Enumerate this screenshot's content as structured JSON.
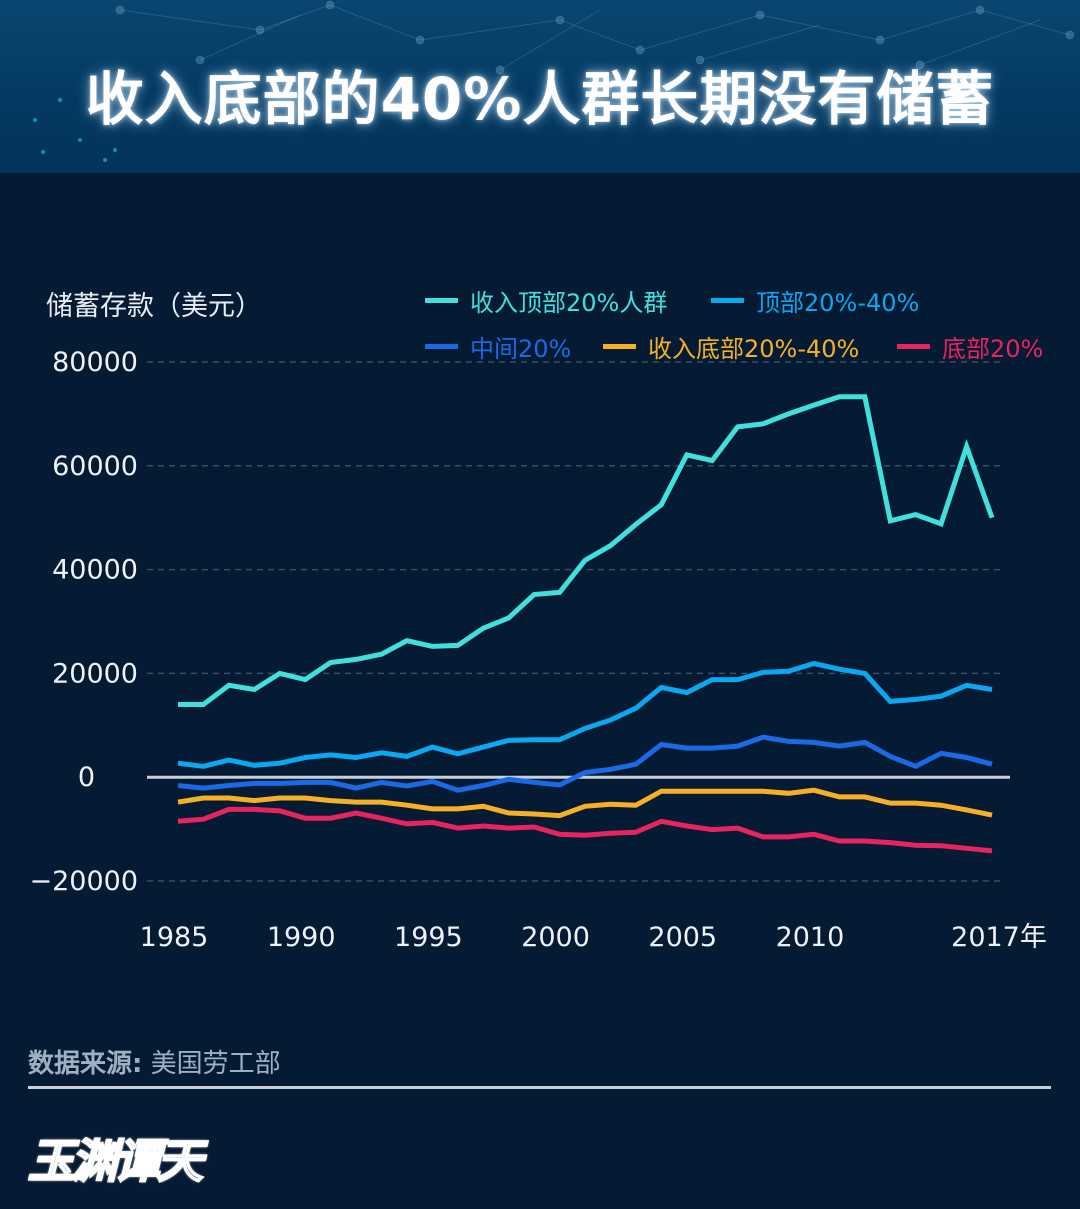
{
  "header": {
    "title": "收入底部的40%人群长期没有储蓄"
  },
  "chart_data": {
    "type": "line",
    "title": "收入底部的40%人群长期没有储蓄",
    "ylabel": "储蓄存款（美元）",
    "xlabel": "",
    "ylim": [
      -20000,
      80000
    ],
    "xlim": [
      1985,
      2017
    ],
    "y_ticks": [
      80000,
      60000,
      40000,
      20000,
      0,
      -20000
    ],
    "y_tick_labels": [
      "80000",
      "60000",
      "40000",
      "20000",
      "0",
      "−20000"
    ],
    "x_ticks": [
      1985,
      1990,
      1995,
      2000,
      2005,
      2010,
      2017
    ],
    "x_tick_labels": [
      "1985",
      "1990",
      "1995",
      "2000",
      "2005",
      "2010",
      "2017年"
    ],
    "grid": "horizontal-dashed",
    "legend_position": "top-right",
    "x": [
      1985,
      1986,
      1987,
      1988,
      1989,
      1990,
      1991,
      1992,
      1993,
      1994,
      1995,
      1996,
      1997,
      1998,
      1999,
      2000,
      2001,
      2002,
      2003,
      2004,
      2005,
      2006,
      2007,
      2008,
      2009,
      2010,
      2011,
      2012,
      2013,
      2014,
      2015,
      2016,
      2017
    ],
    "series": [
      {
        "name": "收入顶部20%人群",
        "color": "#40e0dc",
        "values": [
          14000,
          14000,
          17700,
          16900,
          20000,
          18800,
          22100,
          22700,
          23700,
          26300,
          25200,
          25400,
          28700,
          30700,
          35200,
          35600,
          41800,
          44600,
          48700,
          52500,
          62100,
          61000,
          67500,
          68100,
          70000,
          71700,
          73300,
          73300,
          49400,
          50600,
          48800,
          63700,
          50000
        ]
      },
      {
        "name": "顶部20%-40%",
        "color": "#0aa8f0",
        "values": [
          2700,
          2100,
          3300,
          2300,
          2700,
          3800,
          4300,
          3800,
          4700,
          4000,
          5800,
          4500,
          5800,
          7100,
          7200,
          7200,
          9400,
          11000,
          13300,
          17300,
          16300,
          18800,
          18800,
          20200,
          20400,
          21900,
          20800,
          20000,
          14600,
          15000,
          15600,
          17700,
          16900
        ]
      },
      {
        "name": "中间20%",
        "color": "#1a6ae6",
        "values": [
          -1600,
          -2100,
          -1600,
          -1200,
          -1200,
          -1000,
          -1000,
          -2100,
          -1000,
          -1700,
          -800,
          -2500,
          -1600,
          -400,
          -1000,
          -1500,
          900,
          1500,
          2500,
          6300,
          5600,
          5600,
          6000,
          7700,
          6900,
          6700,
          6000,
          6700,
          4000,
          2100,
          4600,
          3800,
          2500
        ]
      },
      {
        "name": "收入底部20%-40%",
        "color": "#f5b027",
        "values": [
          -4800,
          -4000,
          -4000,
          -4500,
          -4000,
          -4000,
          -4500,
          -4800,
          -4800,
          -5400,
          -6100,
          -6100,
          -5600,
          -6900,
          -7100,
          -7400,
          -5600,
          -5200,
          -5400,
          -2700,
          -2700,
          -2700,
          -2700,
          -2700,
          -3100,
          -2500,
          -3800,
          -3800,
          -5000,
          -5000,
          -5400,
          -6300,
          -7300
        ]
      },
      {
        "name": "底部20%",
        "color": "#e8245e",
        "values": [
          -8500,
          -8100,
          -6200,
          -6200,
          -6500,
          -7900,
          -7900,
          -6900,
          -7900,
          -9000,
          -8700,
          -9800,
          -9400,
          -9800,
          -9600,
          -11000,
          -11200,
          -10800,
          -10600,
          -8500,
          -9400,
          -10100,
          -9800,
          -11500,
          -11500,
          -11000,
          -12300,
          -12300,
          -12600,
          -13100,
          -13200,
          -13700,
          -14200
        ]
      }
    ]
  },
  "footer": {
    "source_label": "数据来源:",
    "source_value": "美国劳工部",
    "logo_text": "玉渊谭天"
  }
}
